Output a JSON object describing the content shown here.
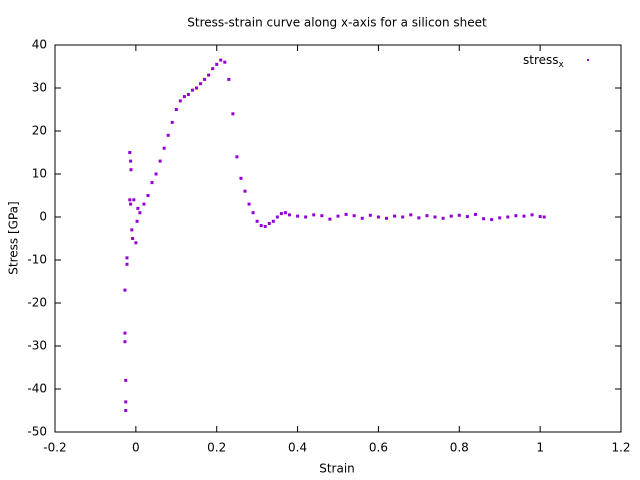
{
  "chart_data": {
    "type": "scatter",
    "title": "Stress-strain curve along x-axis for a silicon sheet",
    "x_label": "Strain",
    "y_label": "Stress [GPa]",
    "xlim": [
      -0.2,
      1.2
    ],
    "ylim": [
      -50,
      40
    ],
    "xticks": [
      -0.2,
      0,
      0.2,
      0.4,
      0.6,
      0.8,
      1,
      1.2
    ],
    "yticks": [
      -50,
      -40,
      -30,
      -20,
      -10,
      0,
      10,
      20,
      30,
      40
    ],
    "legend": "top-right",
    "series": [
      {
        "name": "stress",
        "subscript": "x",
        "color": "#9400d3",
        "x": [
          -0.025,
          -0.025,
          -0.025,
          -0.027,
          -0.027,
          -0.027,
          -0.022,
          -0.022,
          -0.015,
          -0.013,
          -0.012,
          -0.015,
          -0.013,
          -0.01,
          -0.008,
          -0.005,
          0.0,
          0.003,
          0.005,
          0.01,
          0.02,
          0.03,
          0.04,
          0.05,
          0.06,
          0.07,
          0.08,
          0.09,
          0.1,
          0.11,
          0.12,
          0.13,
          0.14,
          0.15,
          0.16,
          0.17,
          0.18,
          0.19,
          0.2,
          0.21,
          0.22,
          0.23,
          0.24,
          0.25,
          0.26,
          0.27,
          0.28,
          0.29,
          0.3,
          0.31,
          0.32,
          0.33,
          0.34,
          0.35,
          0.36,
          0.37,
          0.38,
          0.4,
          0.42,
          0.44,
          0.46,
          0.48,
          0.5,
          0.52,
          0.54,
          0.56,
          0.58,
          0.6,
          0.62,
          0.64,
          0.66,
          0.68,
          0.7,
          0.72,
          0.74,
          0.76,
          0.78,
          0.8,
          0.82,
          0.84,
          0.86,
          0.88,
          0.9,
          0.92,
          0.94,
          0.96,
          0.98,
          1.0,
          1.01
        ],
        "values": [
          -45,
          -43,
          -38,
          -29,
          -27,
          -17,
          -11,
          -9.5,
          15,
          13,
          11,
          4,
          3,
          -3,
          -5,
          4,
          -6,
          -1,
          2,
          1,
          3,
          5,
          8,
          10,
          13,
          16,
          19,
          22,
          25,
          27,
          28,
          28.5,
          29.5,
          30,
          31,
          32,
          33,
          34.5,
          35.5,
          36.5,
          36,
          32,
          24,
          14,
          9,
          6,
          3,
          1,
          -1,
          -2,
          -2.2,
          -1.5,
          -1,
          0,
          0.8,
          1,
          0.5,
          0.2,
          0,
          0.5,
          0.3,
          -0.5,
          0.2,
          0.6,
          0.3,
          -0.3,
          0.4,
          0,
          -0.3,
          0.2,
          0,
          0.5,
          -0.2,
          0.3,
          0,
          -0.3,
          0.2,
          0.4,
          0.1,
          0.6,
          -0.4,
          -0.6,
          -0.2,
          0,
          0.3,
          0.2,
          0.5,
          0.1,
          0
        ]
      }
    ]
  }
}
